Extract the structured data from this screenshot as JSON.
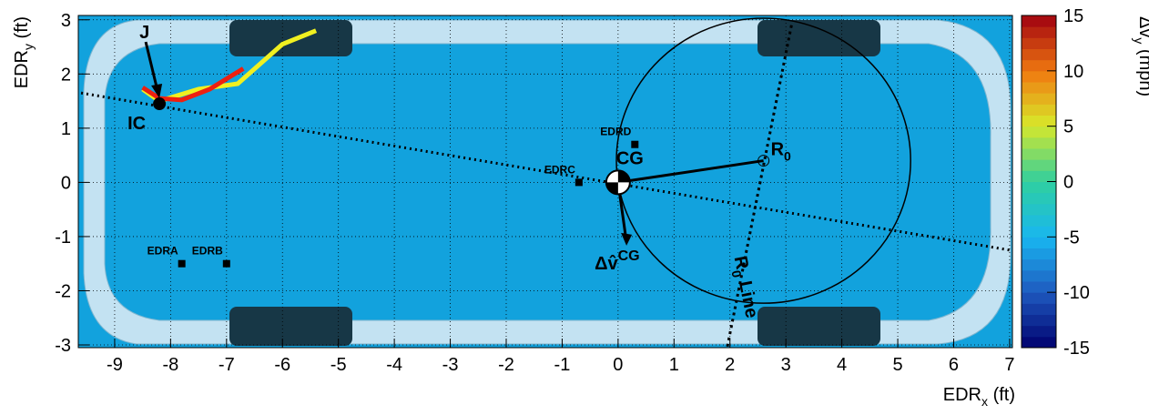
{
  "chart_data": {
    "type": "line",
    "xlabel": {
      "main": "EDR",
      "sub": "x",
      "unit": "(ft)"
    },
    "ylabel": {
      "main": "EDR",
      "sub": "y",
      "unit": "(ft)"
    },
    "colorbar": {
      "main": "Δv",
      "sub": "y",
      "unit": "(mph)",
      "zlim": [
        -15,
        15
      ],
      "zticks": [
        -15,
        -10,
        -5,
        0,
        5,
        10,
        15
      ]
    },
    "xlim": [
      -9.65,
      7.05
    ],
    "xticks": [
      -9,
      -8,
      -7,
      -6,
      -5,
      -4,
      -3,
      -2,
      -1,
      0,
      1,
      2,
      3,
      4,
      5,
      6,
      7
    ],
    "ylim": [
      -3.05,
      3.08
    ],
    "yticks": [
      -3,
      -2,
      -1,
      0,
      1,
      2,
      3
    ],
    "grid": true,
    "series": [
      {
        "color": "#f0f020",
        "x": [
          -8.5,
          -8.2,
          -7.5,
          -6.8,
          -6.0,
          -5.4
        ],
        "values": [
          1.72,
          1.5,
          1.72,
          1.82,
          2.55,
          2.8
        ]
      },
      {
        "color": "#ee2010",
        "x": [
          -8.5,
          -8.2,
          -7.8,
          -7.3,
          -6.7
        ],
        "values": [
          1.75,
          1.55,
          1.52,
          1.72,
          2.1
        ]
      }
    ],
    "points": [
      {
        "name": "IC",
        "x": -8.2,
        "y": 1.45
      },
      {
        "name": "EDRA",
        "x": -7.8,
        "y": -1.5
      },
      {
        "name": "EDRB",
        "x": -7.0,
        "y": -1.5
      },
      {
        "name": "EDRC",
        "x": -0.7,
        "y": 0.0
      },
      {
        "name": "EDRD",
        "x": 0.3,
        "y": 0.7
      },
      {
        "name": "CG",
        "x": 0.0,
        "y": 0.0
      }
    ],
    "r0": {
      "name": "R",
      "sub": "0",
      "x": 2.6,
      "y": 0.4,
      "radius": 2.63
    },
    "ic_line": {
      "x": [
        -9.6,
        7.0
      ],
      "y": [
        1.65,
        -1.25
      ]
    },
    "r0_line": {
      "label": "R",
      "sub": "0",
      "rest": " Line",
      "x": [
        3.1,
        1.95
      ],
      "y": [
        2.9,
        -3.05
      ]
    },
    "delta_v": {
      "label": "Δv̂",
      "sup": "CG",
      "x": [
        0.0,
        0.15
      ],
      "y": [
        0.0,
        -1.1
      ]
    },
    "j_label": {
      "text": "J",
      "x": -8.2,
      "y": 1.45
    }
  }
}
